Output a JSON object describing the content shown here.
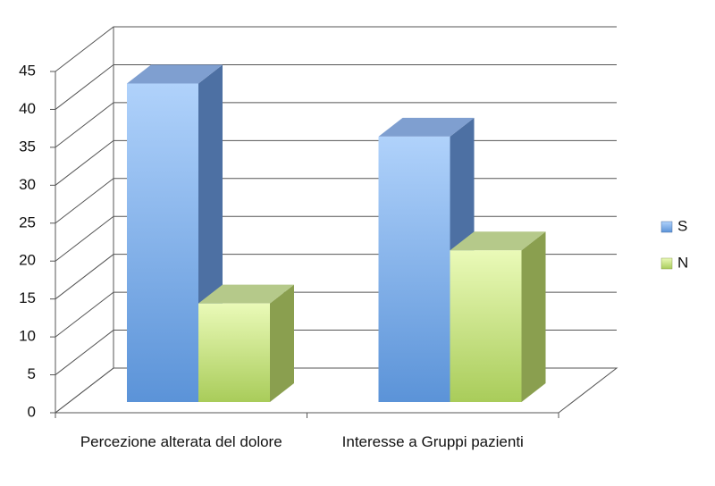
{
  "chart_data": {
    "type": "bar3d",
    "categories": [
      "Percezione alterata del dolore",
      "Interesse a Gruppi pazienti"
    ],
    "series": [
      {
        "name": "S",
        "color": "#6fa3e6",
        "values": [
          42,
          35
        ]
      },
      {
        "name": "N",
        "color": "#c4e27e",
        "values": [
          13,
          20
        ]
      }
    ],
    "ylim": [
      0,
      45
    ],
    "yticks": [
      0,
      5,
      10,
      15,
      20,
      25,
      30,
      35,
      40,
      45
    ],
    "grid": true,
    "legend": "right"
  }
}
